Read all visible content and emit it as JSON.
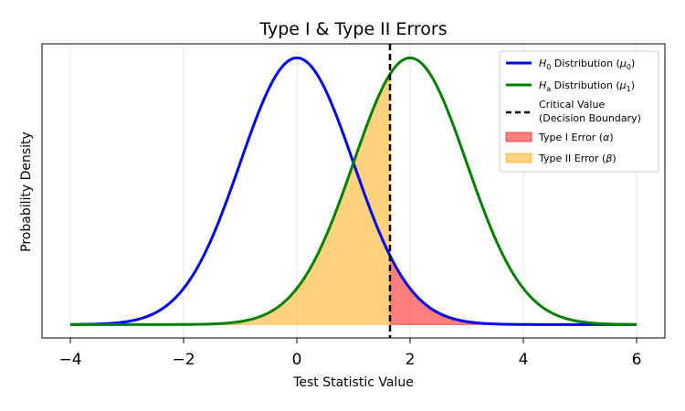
{
  "chart_data": {
    "type": "line",
    "title": "Type I & Type II Errors",
    "xlabel": "Test Statistic Value",
    "ylabel": "Probability Density",
    "xlim": [
      -4.5,
      6.5
    ],
    "ylim": [
      -0.02,
      0.42
    ],
    "x_ticks": [
      -4,
      -2,
      0,
      2,
      4,
      6
    ],
    "x_tick_labels": [
      "−4",
      "−2",
      "0",
      "2",
      "4",
      "6"
    ],
    "y_ticks_shown": false,
    "grid": true,
    "legend_position": "top-right",
    "critical_value": 1.645,
    "series": [
      {
        "name": "H₀ Distribution (μ₀)",
        "name_base": "H",
        "name_sub": "0",
        "name_rest": " Distribution (",
        "name_mu": "μ",
        "name_mu_sub": "0",
        "name_close": ")",
        "mean": 0,
        "sd": 1,
        "color": "#0000ff",
        "x_range": [
          -4,
          6
        ]
      },
      {
        "name": "Hₐ Distribution (μ₁)",
        "name_base": "H",
        "name_sub": "a",
        "name_rest": " Distribution (",
        "name_mu": "μ",
        "name_mu_sub": "1",
        "name_close": ")",
        "mean": 2,
        "sd": 1,
        "color": "#008000",
        "x_range": [
          -4,
          6
        ]
      }
    ],
    "critical_line": {
      "label_line1": "Critical Value",
      "label_line2": "(Decision Boundary)",
      "x": 1.645,
      "color": "#000000",
      "style": "dashed"
    },
    "shaded_areas": [
      {
        "name": "Type I Error (α)",
        "label_text": "Type I Error (",
        "label_symbol": "α",
        "label_close": ")",
        "under": "H0",
        "from": 1.645,
        "to": 6,
        "color": "#ff0000",
        "opacity": 0.5
      },
      {
        "name": "Type II Error (β)",
        "label_text": "Type II Error (",
        "label_symbol": "β",
        "label_close": ")",
        "under": "Ha",
        "from": -4,
        "to": 1.645,
        "color": "#ffa500",
        "opacity": 0.5
      }
    ]
  }
}
